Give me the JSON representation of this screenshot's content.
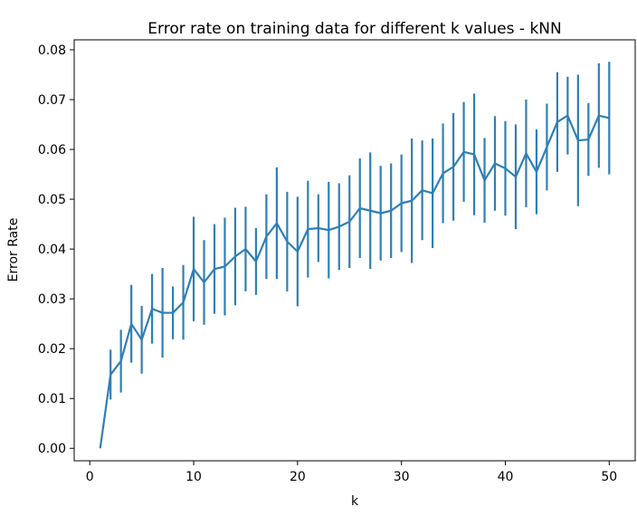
{
  "chart_data": {
    "type": "line",
    "title": "Error rate on training data for different k values - kNN",
    "xlabel": "k",
    "ylabel": "Error Rate",
    "xlim": [
      -1.5,
      52.5
    ],
    "ylim": [
      -0.0025,
      0.082
    ],
    "xticks": [
      0,
      10,
      20,
      30,
      40,
      50
    ],
    "xtick_labels": [
      "0",
      "10",
      "20",
      "30",
      "40",
      "50"
    ],
    "yticks": [
      0.0,
      0.01,
      0.02,
      0.03,
      0.04,
      0.05,
      0.06,
      0.07,
      0.08
    ],
    "ytick_labels": [
      "0.00",
      "0.01",
      "0.02",
      "0.03",
      "0.04",
      "0.05",
      "0.06",
      "0.07",
      "0.08"
    ],
    "grid": false,
    "color": "#2f7fb6",
    "series": [
      {
        "x": [
          1,
          2,
          3,
          4,
          5,
          6,
          7,
          8,
          9,
          10,
          11,
          12,
          13,
          14,
          15,
          16,
          17,
          18,
          19,
          20,
          21,
          22,
          23,
          24,
          25,
          26,
          27,
          28,
          29,
          30,
          31,
          32,
          33,
          34,
          35,
          36,
          37,
          38,
          39,
          40,
          41,
          42,
          43,
          44,
          45,
          46,
          47,
          48,
          49,
          50
        ],
        "y": [
          0.0,
          0.0148,
          0.0175,
          0.025,
          0.0218,
          0.028,
          0.0272,
          0.0272,
          0.0293,
          0.036,
          0.0333,
          0.036,
          0.0365,
          0.0385,
          0.04,
          0.0375,
          0.0425,
          0.0452,
          0.0415,
          0.0395,
          0.044,
          0.0442,
          0.0438,
          0.0445,
          0.0455,
          0.0482,
          0.0477,
          0.0472,
          0.0477,
          0.0492,
          0.0497,
          0.0518,
          0.0512,
          0.0552,
          0.0565,
          0.0595,
          0.059,
          0.0538,
          0.0572,
          0.0562,
          0.0545,
          0.0592,
          0.0555,
          0.0605,
          0.0655,
          0.0668,
          0.0618,
          0.062,
          0.0668,
          0.0663
        ],
        "yerr": [
          0.0,
          0.005,
          0.0063,
          0.0078,
          0.0068,
          0.007,
          0.009,
          0.0053,
          0.0075,
          0.0105,
          0.0085,
          0.009,
          0.0098,
          0.0098,
          0.0085,
          0.0067,
          0.0085,
          0.0112,
          0.01,
          0.011,
          0.0097,
          0.0068,
          0.0097,
          0.0087,
          0.0093,
          0.01,
          0.0117,
          0.0095,
          0.0095,
          0.0098,
          0.0125,
          0.01,
          0.011,
          0.01,
          0.0108,
          0.01,
          0.0122,
          0.0085,
          0.0095,
          0.0095,
          0.0105,
          0.0108,
          0.0085,
          0.0087,
          0.01,
          0.0078,
          0.0132,
          0.0073,
          0.0105,
          0.0113
        ]
      }
    ]
  }
}
